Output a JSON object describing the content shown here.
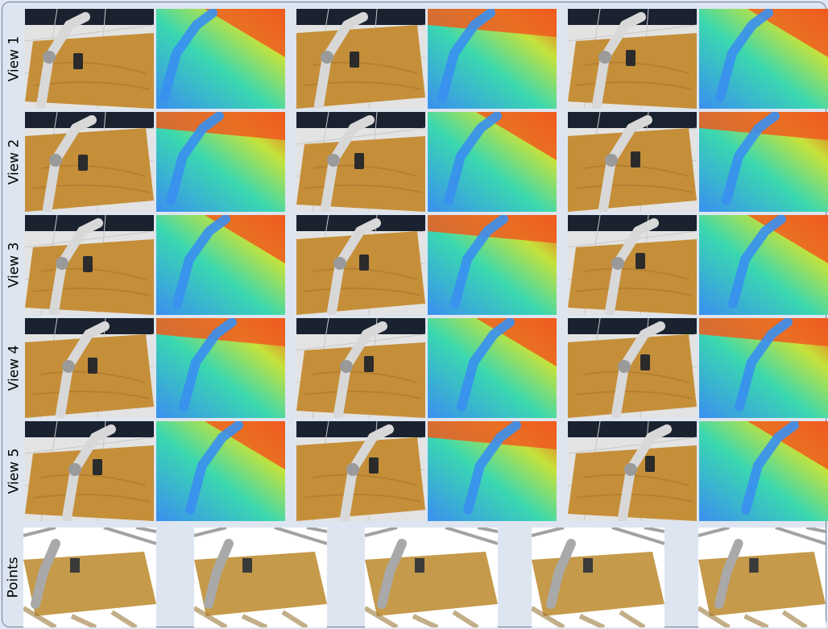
{
  "rows": [
    {
      "label": "View 1"
    },
    {
      "label": "View 2"
    },
    {
      "label": "View 3"
    },
    {
      "label": "View 4"
    },
    {
      "label": "View 5"
    },
    {
      "label": "Points"
    }
  ],
  "colors": {
    "table_wood": "#c58f3a",
    "floor_tile": "#e3e3e3",
    "robot": "#d8d8d8",
    "depth_far": "#f05a1e",
    "depth_mid": "#3ad8b0",
    "depth_near": "#3a8ff0",
    "point_cloud_wood": "#c59a4a"
  }
}
